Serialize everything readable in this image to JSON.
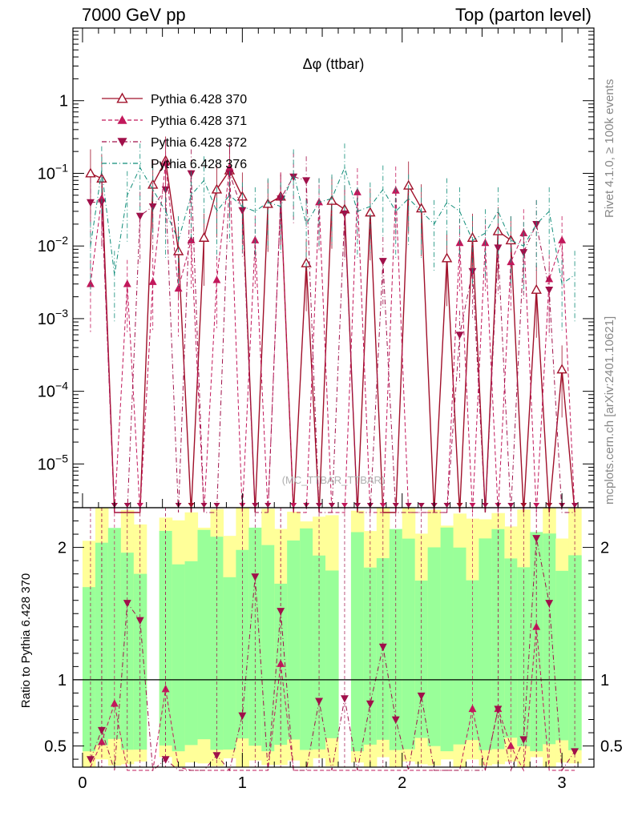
{
  "header": {
    "left": "7000 GeV pp",
    "right": "Top (parton level)"
  },
  "side_labels": {
    "rivet": "Rivet 4.1.0, ≥ 100k events",
    "mcplots": "mcplots.cern.ch [arXiv:2401.10621]"
  },
  "chart_data": {
    "type": "line",
    "title": "Δφ (ttbar)",
    "watermark": "(MC_TTBAR_TTBAR)",
    "xlabel": "",
    "ylabel_top": "",
    "ylabel_ratio": "Ratio to Pythia 6.428 370",
    "xlim": [
      -0.06,
      3.2
    ],
    "ylim_log": [
      2.5e-06,
      10
    ],
    "ratio_ylim": [
      0.34,
      2.3
    ],
    "x_ticks": [
      "0",
      "1",
      "2",
      "3"
    ],
    "y_ticks": [
      {
        "base": "1",
        "exp": ""
      },
      {
        "base": "10",
        "exp": "−1"
      },
      {
        "base": "10",
        "exp": "−2"
      },
      {
        "base": "10",
        "exp": "−3"
      },
      {
        "base": "10",
        "exp": "−4"
      },
      {
        "base": "10",
        "exp": "−5"
      }
    ],
    "ratio_ticks": [
      "0.5",
      "1",
      "2"
    ],
    "legend_position": "top-left",
    "x": [
      0.05,
      0.12,
      0.2,
      0.28,
      0.36,
      0.44,
      0.52,
      0.6,
      0.68,
      0.76,
      0.84,
      0.92,
      1.0,
      1.08,
      1.16,
      1.24,
      1.32,
      1.4,
      1.48,
      1.56,
      1.64,
      1.72,
      1.8,
      1.88,
      1.96,
      2.04,
      2.12,
      2.2,
      2.28,
      2.36,
      2.44,
      2.52,
      2.6,
      2.68,
      2.76,
      2.84,
      2.92,
      3.0,
      3.08
    ],
    "series": [
      {
        "name": "Pythia 6.428 370",
        "color": "#a0102a",
        "style": "solid",
        "marker": "open-triangle-up",
        "values": [
          0.1,
          0.085,
          0,
          0,
          0,
          0.07,
          0.15,
          0.0085,
          0,
          0.013,
          0.06,
          0.11,
          0.048,
          0,
          0.038,
          0.048,
          0,
          0.0058,
          0,
          0.042,
          0.032,
          0,
          0.029,
          0,
          0,
          0.068,
          0.033,
          0,
          0.0068,
          0,
          0.013,
          0,
          0.016,
          0.012,
          0,
          0.0025,
          0,
          0.0002,
          0
        ]
      },
      {
        "name": "Pythia 6.428 371",
        "color": "#c2185b",
        "style": "dashed",
        "marker": "filled-triangle-up",
        "values": [
          0.003,
          0.045,
          0,
          0.003,
          0,
          0.0032,
          0.14,
          0.0026,
          0.012,
          0,
          0.0034,
          0.12,
          0,
          0.012,
          0,
          0.048,
          0,
          0,
          0.04,
          0,
          0,
          0.055,
          0,
          0,
          0.058,
          0,
          0,
          0,
          0,
          0.011,
          0,
          0.011,
          0,
          0.006,
          0.015,
          0,
          0.0035,
          0.012,
          0
        ]
      },
      {
        "name": "Pythia 6.428 372",
        "color": "#a0104a",
        "style": "dashdot",
        "marker": "filled-triangle-down",
        "values": [
          0.04,
          0.04,
          0,
          0,
          0.026,
          0.035,
          0.06,
          0,
          0.1,
          0,
          0,
          0.1,
          0.031,
          0,
          0,
          0.045,
          0.09,
          0.08,
          0,
          0,
          0.028,
          0,
          0,
          0.0062,
          0,
          0,
          0,
          0,
          0,
          0.0006,
          0.0045,
          0,
          0.0095,
          0,
          0.0082,
          0.02,
          0.0025,
          0,
          0
        ]
      },
      {
        "name": "Pythia 6.428 376",
        "color": "#0f8c78",
        "style": "dashdot",
        "marker": "none",
        "values": [
          0.01,
          0.11,
          0.004,
          0.05,
          0.12,
          0.06,
          0.03,
          0.012,
          0.05,
          0.08,
          0.03,
          0.05,
          0.035,
          0.03,
          0.04,
          0.035,
          0.1,
          0.02,
          0.04,
          0.045,
          0.12,
          0.03,
          0.035,
          0.06,
          0.03,
          0.045,
          0.03,
          0.02,
          0.04,
          0.03,
          0.012,
          0.015,
          0.03,
          0.012,
          0.01,
          0.02,
          0.03,
          0.003,
          0.004
        ]
      }
    ],
    "ratio_series": [
      {
        "name": "Pythia 6.428 371",
        "values": [
          0.035,
          0.53,
          0.82,
          0,
          0,
          0,
          0.93,
          0.31,
          0,
          0,
          0,
          0,
          0,
          0,
          0,
          1.12,
          0,
          0,
          0,
          0,
          0,
          0,
          0,
          0,
          0,
          0,
          0,
          0,
          0,
          0,
          0.78,
          0,
          0.78,
          0.5,
          0,
          1.4,
          0,
          0,
          0
        ]
      },
      {
        "name": "Pythia 6.428 372",
        "values": [
          0.4,
          0.62,
          0,
          1.58,
          1.45,
          0,
          0.4,
          0,
          0,
          0,
          0.43,
          0,
          0.73,
          1.78,
          0,
          1.52,
          0,
          0,
          0.84,
          0,
          0.86,
          0,
          0.82,
          1.25,
          0.7,
          0,
          0.88,
          0,
          0,
          0,
          0,
          0,
          0.78,
          0,
          0.55,
          2.07,
          1.58,
          0,
          0.46
        ]
      }
    ],
    "uncertainty_band_note": "yellow and green uncertainty bands around ratio 1"
  }
}
